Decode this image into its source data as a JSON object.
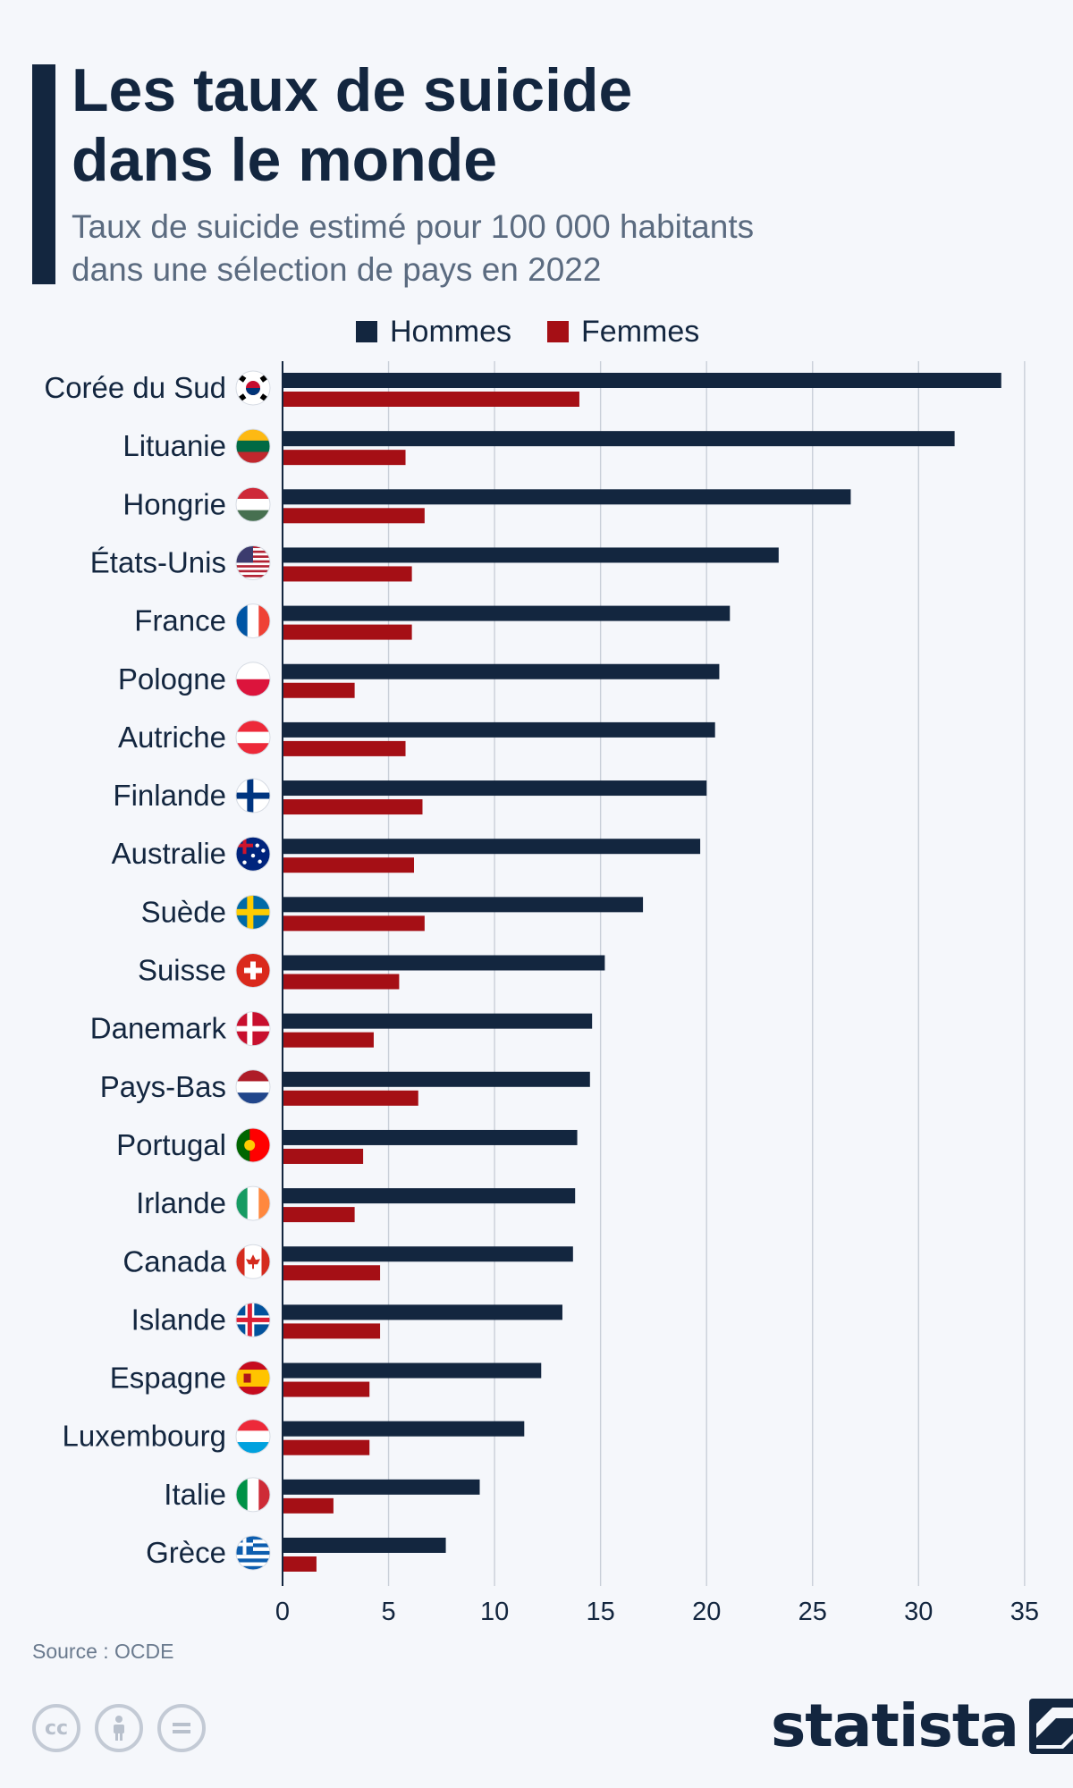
{
  "header": {
    "title": "Les taux de suicide\ndans le monde",
    "subtitle": "Taux de suicide estimé pour 100 000 habitants\ndans une sélection de pays en 2022"
  },
  "legend": {
    "hommes": "Hommes",
    "femmes": "Femmes",
    "hommes_color": "#13263f",
    "femmes_color": "#a50f15"
  },
  "footer": {
    "source": "Source : OCDE",
    "brand": "statista",
    "cc_icons": [
      "cc-icon",
      "by-icon",
      "nd-icon"
    ]
  },
  "chart_data": {
    "type": "bar",
    "orientation": "horizontal",
    "title": "Les taux de suicide dans le monde",
    "subtitle": "Taux de suicide estimé pour 100 000 habitants dans une sélection de pays en 2022",
    "categories": [
      "Corée du Sud",
      "Lituanie",
      "Hongrie",
      "États-Unis",
      "France",
      "Pologne",
      "Autriche",
      "Finlande",
      "Australie",
      "Suède",
      "Suisse",
      "Danemark",
      "Pays-Bas",
      "Portugal",
      "Irlande",
      "Canada",
      "Islande",
      "Espagne",
      "Luxembourg",
      "Italie",
      "Grèce"
    ],
    "flags": [
      "south-korea-flag-icon",
      "lithuania-flag-icon",
      "hungary-flag-icon",
      "usa-flag-icon",
      "france-flag-icon",
      "poland-flag-icon",
      "austria-flag-icon",
      "finland-flag-icon",
      "australia-flag-icon",
      "sweden-flag-icon",
      "switzerland-flag-icon",
      "denmark-flag-icon",
      "netherlands-flag-icon",
      "portugal-flag-icon",
      "ireland-flag-icon",
      "canada-flag-icon",
      "iceland-flag-icon",
      "spain-flag-icon",
      "luxembourg-flag-icon",
      "italy-flag-icon",
      "greece-flag-icon"
    ],
    "series": [
      {
        "name": "Hommes",
        "color": "#13263f",
        "values": [
          33.9,
          31.7,
          26.8,
          23.4,
          21.1,
          20.6,
          20.4,
          20.0,
          19.7,
          17.0,
          15.2,
          14.6,
          14.5,
          13.9,
          13.8,
          13.7,
          13.2,
          12.2,
          11.4,
          9.3,
          7.7
        ]
      },
      {
        "name": "Femmes",
        "color": "#a50f15",
        "values": [
          14.0,
          5.8,
          6.7,
          6.1,
          6.1,
          3.4,
          5.8,
          6.6,
          6.2,
          6.7,
          5.5,
          4.3,
          6.4,
          3.8,
          3.4,
          4.6,
          4.6,
          4.1,
          4.1,
          2.4,
          1.6
        ]
      }
    ],
    "xlim": [
      0,
      35
    ],
    "xticks": [
      0,
      5,
      10,
      15,
      20,
      25,
      30,
      35
    ],
    "grid": true,
    "legend_position": "top"
  }
}
